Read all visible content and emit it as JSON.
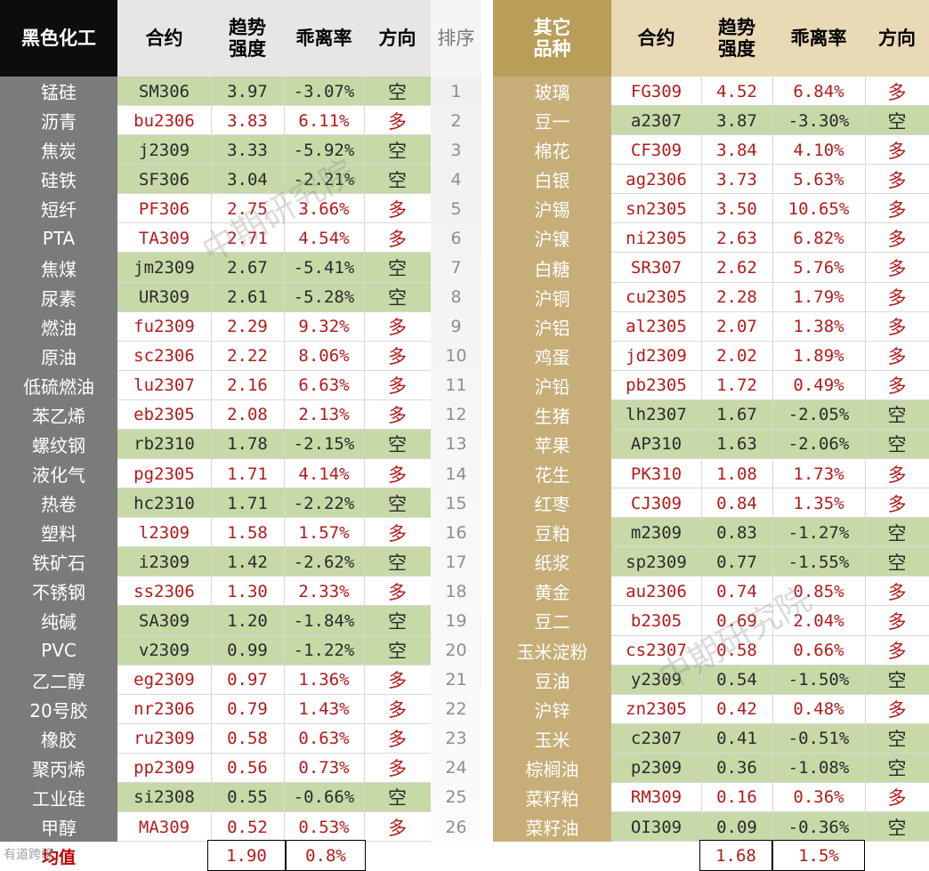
{
  "headers": {
    "left_group": "黑色化工",
    "contract": "合约",
    "strength": "趋势强度",
    "deviation": "乖离率",
    "direction": "方向",
    "rank": "排序",
    "right_group": "其它品种"
  },
  "rows": [
    {
      "rank": "1",
      "l_name": "锰硅",
      "l_code": "SM306",
      "l_str": "3.97",
      "l_dev": "-3.07%",
      "l_dir": "空",
      "r_name": "玻璃",
      "r_code": "FG309",
      "r_str": "4.52",
      "r_dev": "6.84%",
      "r_dir": "多"
    },
    {
      "rank": "2",
      "l_name": "沥青",
      "l_code": "bu2306",
      "l_str": "3.83",
      "l_dev": "6.11%",
      "l_dir": "多",
      "r_name": "豆一",
      "r_code": "a2307",
      "r_str": "3.87",
      "r_dev": "-3.30%",
      "r_dir": "空"
    },
    {
      "rank": "3",
      "l_name": "焦炭",
      "l_code": "j2309",
      "l_str": "3.33",
      "l_dev": "-5.92%",
      "l_dir": "空",
      "r_name": "棉花",
      "r_code": "CF309",
      "r_str": "3.84",
      "r_dev": "4.10%",
      "r_dir": "多"
    },
    {
      "rank": "4",
      "l_name": "硅铁",
      "l_code": "SF306",
      "l_str": "3.04",
      "l_dev": "-2.21%",
      "l_dir": "空",
      "r_name": "白银",
      "r_code": "ag2306",
      "r_str": "3.73",
      "r_dev": "5.63%",
      "r_dir": "多"
    },
    {
      "rank": "5",
      "l_name": "短纤",
      "l_code": "PF306",
      "l_str": "2.75",
      "l_dev": "3.66%",
      "l_dir": "多",
      "r_name": "沪锡",
      "r_code": "sn2305",
      "r_str": "3.50",
      "r_dev": "10.65%",
      "r_dir": "多"
    },
    {
      "rank": "6",
      "l_name": "PTA",
      "l_code": "TA309",
      "l_str": "2.71",
      "l_dev": "4.54%",
      "l_dir": "多",
      "r_name": "沪镍",
      "r_code": "ni2305",
      "r_str": "2.63",
      "r_dev": "6.82%",
      "r_dir": "多"
    },
    {
      "rank": "7",
      "l_name": "焦煤",
      "l_code": "jm2309",
      "l_str": "2.67",
      "l_dev": "-5.41%",
      "l_dir": "空",
      "r_name": "白糖",
      "r_code": "SR307",
      "r_str": "2.62",
      "r_dev": "5.76%",
      "r_dir": "多"
    },
    {
      "rank": "8",
      "l_name": "尿素",
      "l_code": "UR309",
      "l_str": "2.61",
      "l_dev": "-5.28%",
      "l_dir": "空",
      "r_name": "沪铜",
      "r_code": "cu2305",
      "r_str": "2.28",
      "r_dev": "1.79%",
      "r_dir": "多"
    },
    {
      "rank": "9",
      "l_name": "燃油",
      "l_code": "fu2309",
      "l_str": "2.29",
      "l_dev": "9.32%",
      "l_dir": "多",
      "r_name": "沪铝",
      "r_code": "al2305",
      "r_str": "2.07",
      "r_dev": "1.38%",
      "r_dir": "多"
    },
    {
      "rank": "10",
      "l_name": "原油",
      "l_code": "sc2306",
      "l_str": "2.22",
      "l_dev": "8.06%",
      "l_dir": "多",
      "r_name": "鸡蛋",
      "r_code": "jd2309",
      "r_str": "2.02",
      "r_dev": "1.89%",
      "r_dir": "多"
    },
    {
      "rank": "11",
      "l_name": "低硫燃油",
      "l_code": "lu2307",
      "l_str": "2.16",
      "l_dev": "6.63%",
      "l_dir": "多",
      "r_name": "沪铅",
      "r_code": "pb2305",
      "r_str": "1.72",
      "r_dev": "0.49%",
      "r_dir": "多"
    },
    {
      "rank": "12",
      "l_name": "苯乙烯",
      "l_code": "eb2305",
      "l_str": "2.08",
      "l_dev": "2.13%",
      "l_dir": "多",
      "r_name": "生猪",
      "r_code": "lh2307",
      "r_str": "1.67",
      "r_dev": "-2.05%",
      "r_dir": "空"
    },
    {
      "rank": "13",
      "l_name": "螺纹钢",
      "l_code": "rb2310",
      "l_str": "1.78",
      "l_dev": "-2.15%",
      "l_dir": "空",
      "r_name": "苹果",
      "r_code": "AP310",
      "r_str": "1.63",
      "r_dev": "-2.06%",
      "r_dir": "空"
    },
    {
      "rank": "14",
      "l_name": "液化气",
      "l_code": "pg2305",
      "l_str": "1.71",
      "l_dev": "4.14%",
      "l_dir": "多",
      "r_name": "花生",
      "r_code": "PK310",
      "r_str": "1.08",
      "r_dev": "1.73%",
      "r_dir": "多"
    },
    {
      "rank": "15",
      "l_name": "热卷",
      "l_code": "hc2310",
      "l_str": "1.71",
      "l_dev": "-2.22%",
      "l_dir": "空",
      "r_name": "红枣",
      "r_code": "CJ309",
      "r_str": "0.84",
      "r_dev": "1.35%",
      "r_dir": "多"
    },
    {
      "rank": "16",
      "l_name": "塑料",
      "l_code": "l2309",
      "l_str": "1.58",
      "l_dev": "1.57%",
      "l_dir": "多",
      "r_name": "豆粕",
      "r_code": "m2309",
      "r_str": "0.83",
      "r_dev": "-1.27%",
      "r_dir": "空"
    },
    {
      "rank": "17",
      "l_name": "铁矿石",
      "l_code": "i2309",
      "l_str": "1.42",
      "l_dev": "-2.62%",
      "l_dir": "空",
      "r_name": "纸浆",
      "r_code": "sp2309",
      "r_str": "0.77",
      "r_dev": "-1.55%",
      "r_dir": "空"
    },
    {
      "rank": "18",
      "l_name": "不锈钢",
      "l_code": "ss2306",
      "l_str": "1.30",
      "l_dev": "2.33%",
      "l_dir": "多",
      "r_name": "黄金",
      "r_code": "au2306",
      "r_str": "0.74",
      "r_dev": "0.85%",
      "r_dir": "多"
    },
    {
      "rank": "19",
      "l_name": "纯碱",
      "l_code": "SA309",
      "l_str": "1.20",
      "l_dev": "-1.84%",
      "l_dir": "空",
      "r_name": "豆二",
      "r_code": "b2305",
      "r_str": "0.69",
      "r_dev": "2.04%",
      "r_dir": "多"
    },
    {
      "rank": "20",
      "l_name": "PVC",
      "l_code": "v2309",
      "l_str": "0.99",
      "l_dev": "-1.22%",
      "l_dir": "空",
      "r_name": "玉米淀粉",
      "r_code": "cs2307",
      "r_str": "0.58",
      "r_dev": "0.66%",
      "r_dir": "多"
    },
    {
      "rank": "21",
      "l_name": "乙二醇",
      "l_code": "eg2309",
      "l_str": "0.97",
      "l_dev": "1.36%",
      "l_dir": "多",
      "r_name": "豆油",
      "r_code": "y2309",
      "r_str": "0.54",
      "r_dev": "-1.50%",
      "r_dir": "空"
    },
    {
      "rank": "22",
      "l_name": "20号胶",
      "l_code": "nr2306",
      "l_str": "0.79",
      "l_dev": "1.43%",
      "l_dir": "多",
      "r_name": "沪锌",
      "r_code": "zn2305",
      "r_str": "0.42",
      "r_dev": "0.48%",
      "r_dir": "多"
    },
    {
      "rank": "23",
      "l_name": "橡胶",
      "l_code": "ru2309",
      "l_str": "0.58",
      "l_dev": "0.63%",
      "l_dir": "多",
      "r_name": "玉米",
      "r_code": "c2307",
      "r_str": "0.41",
      "r_dev": "-0.51%",
      "r_dir": "空"
    },
    {
      "rank": "24",
      "l_name": "聚丙烯",
      "l_code": "pp2309",
      "l_str": "0.56",
      "l_dev": "0.73%",
      "l_dir": "多",
      "r_name": "棕榈油",
      "r_code": "p2309",
      "r_str": "0.36",
      "r_dev": "-1.08%",
      "r_dir": "空"
    },
    {
      "rank": "25",
      "l_name": "工业硅",
      "l_code": "si2308",
      "l_str": "0.55",
      "l_dev": "-0.66%",
      "l_dir": "空",
      "r_name": "菜籽粕",
      "r_code": "RM309",
      "r_str": "0.16",
      "r_dev": "0.36%",
      "r_dir": "多"
    },
    {
      "rank": "26",
      "l_name": "甲醇",
      "l_code": "MA309",
      "l_str": "0.52",
      "l_dev": "0.53%",
      "l_dir": "多",
      "r_name": "菜籽油",
      "r_code": "OI309",
      "r_str": "0.09",
      "r_dev": "-0.36%",
      "r_dir": "空"
    }
  ],
  "average": {
    "label": "均值",
    "left_strength": "1.90",
    "left_deviation": "0.8%",
    "right_strength": "1.68",
    "right_deviation": "1.5%"
  },
  "watermark": "中期研究院",
  "brand": "有道跨境",
  "colors": {
    "green_fill": "#c6d9a7",
    "red_text": "#b31b1b",
    "dark_header": "#0d0d0d",
    "gold_header": "#b99e59",
    "left_name_bg": "#7b7b7b",
    "right_name_bg": "#c7ae79"
  }
}
